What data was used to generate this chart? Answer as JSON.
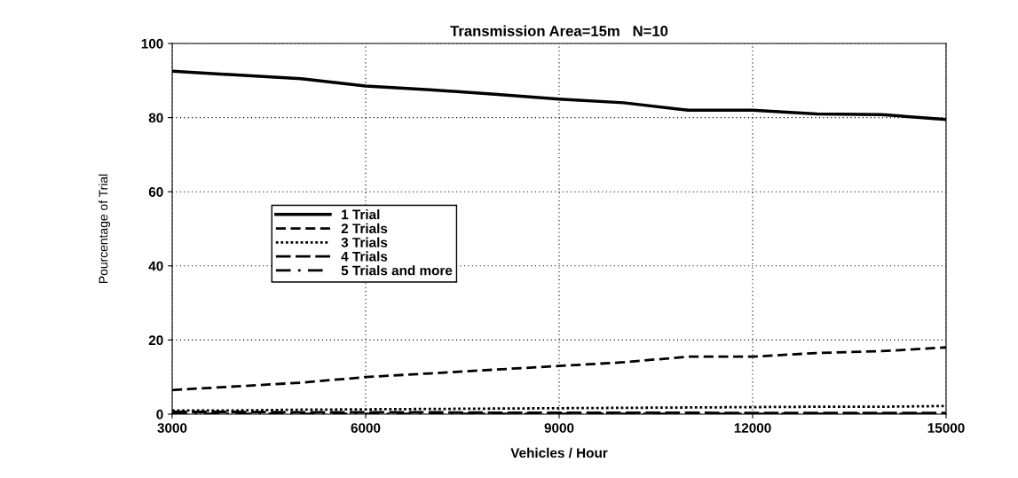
{
  "chart_data": {
    "type": "line",
    "title": "Transmission Area=15m   N=10",
    "xlabel": "Vehicles / Hour",
    "ylabel": "Pourcentage of Trial",
    "x": [
      3000,
      4000,
      5000,
      6000,
      7000,
      8000,
      9000,
      10000,
      11000,
      12000,
      13000,
      14000,
      15000
    ],
    "series": [
      {
        "name": "1 Trial",
        "color": "#000000",
        "line_style": "solid",
        "values": [
          92.5,
          91.5,
          90.5,
          88.5,
          87.5,
          86.3,
          85,
          84,
          82,
          82,
          81,
          80.8,
          79.5
        ]
      },
      {
        "name": "2 Trials",
        "color": "#000000",
        "line_style": "dashed",
        "values": [
          6.5,
          7.5,
          8.5,
          10,
          11,
          12,
          13,
          14,
          15.5,
          15.5,
          16.5,
          17,
          18
        ]
      },
      {
        "name": "3 Trials",
        "color": "#000000",
        "line_style": "dotted",
        "values": [
          1,
          1,
          1.2,
          1.3,
          1.4,
          1.5,
          1.6,
          1.7,
          1.8,
          1.9,
          2,
          2,
          2.2
        ]
      },
      {
        "name": "4 Trials",
        "color": "#000000",
        "line_style": "longdash",
        "values": [
          0.6,
          0.6,
          0.5,
          0.5,
          0.5,
          0.4,
          0.4,
          0.4,
          0.4,
          0.3,
          0.3,
          0.3,
          0.3
        ]
      },
      {
        "name": "5 Trials and more",
        "color": "#000000",
        "line_style": "dashdot",
        "values": [
          0.1,
          0.1,
          0.1,
          0.1,
          0.1,
          0.1,
          0.1,
          0.1,
          0.1,
          0.1,
          0.1,
          0.1,
          0.1
        ]
      }
    ],
    "xlim": [
      3000,
      15000
    ],
    "xticks": [
      3000,
      6000,
      9000,
      12000,
      15000
    ],
    "ylim": [
      0,
      100
    ],
    "yticks": [
      0,
      20,
      40,
      60,
      80,
      100
    ],
    "grid": true,
    "legend": "left",
    "marker": "none"
  }
}
